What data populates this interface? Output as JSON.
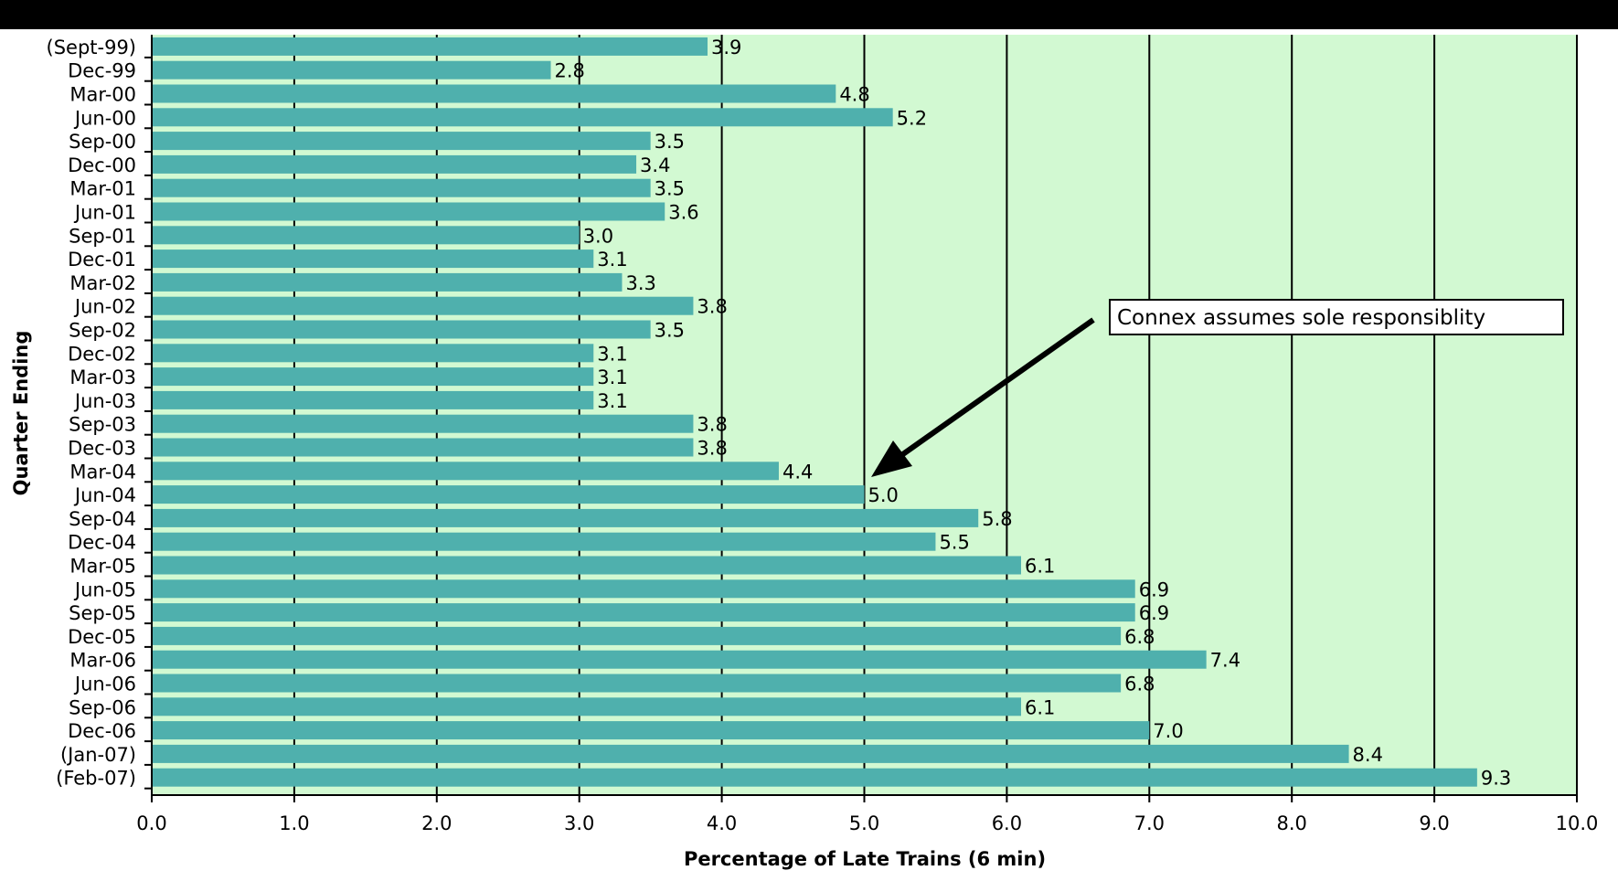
{
  "chart_data": {
    "type": "bar",
    "orientation": "horizontal",
    "title": "",
    "xlabel": "Percentage of Late Trains (6 min)",
    "ylabel": "Quarter Ending",
    "xlim": [
      0,
      10
    ],
    "x_ticks": [
      "0.0",
      "1.0",
      "2.0",
      "3.0",
      "4.0",
      "5.0",
      "6.0",
      "7.0",
      "8.0",
      "9.0",
      "10.0"
    ],
    "grid": true,
    "legend": "none",
    "categories": [
      "(Sept-99)",
      "Dec-99",
      "Mar-00",
      "Jun-00",
      "Sep-00",
      "Dec-00",
      "Mar-01",
      "Jun-01",
      "Sep-01",
      "Dec-01",
      "Mar-02",
      "Jun-02",
      "Sep-02",
      "Dec-02",
      "Mar-03",
      "Jun-03",
      "Sep-03",
      "Dec-03",
      "Mar-04",
      "Jun-04",
      "Sep-04",
      "Dec-04",
      "Mar-05",
      "Jun-05",
      "Sep-05",
      "Dec-05",
      "Mar-06",
      "Jun-06",
      "Sep-06",
      "Dec-06",
      "(Jan-07)",
      "(Feb-07)"
    ],
    "values": [
      3.9,
      2.8,
      4.8,
      5.2,
      3.5,
      3.4,
      3.5,
      3.6,
      3.0,
      3.1,
      3.3,
      3.8,
      3.5,
      3.1,
      3.1,
      3.1,
      3.8,
      3.8,
      4.4,
      5.0,
      5.8,
      5.5,
      6.1,
      6.9,
      6.9,
      6.8,
      7.4,
      6.8,
      6.1,
      7.0,
      8.4,
      9.3
    ],
    "value_labels": [
      "3.9",
      "2.8",
      "4.8",
      "5.2",
      "3.5",
      "3.4",
      "3.5",
      "3.6",
      "3.0",
      "3.1",
      "3.3",
      "3.8",
      "3.5",
      "3.1",
      "3.1",
      "3.1",
      "3.8",
      "3.8",
      "4.4",
      "5.0",
      "5.8",
      "5.5",
      "6.1",
      "6.9",
      "6.9",
      "6.8",
      "7.4",
      "6.8",
      "6.1",
      "7.0",
      "8.4",
      "9.3"
    ],
    "annotation": {
      "text": "Connex assumes sole responsiblity",
      "points_to": "Jun-04"
    },
    "colors": {
      "bar": "#4fb0ad",
      "plot_background": "#d2f9d2",
      "grid": "#000000",
      "page": "#ffffff"
    }
  }
}
